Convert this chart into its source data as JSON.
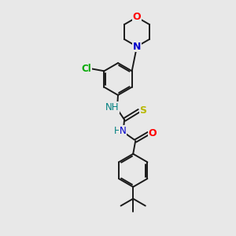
{
  "background_color": "#e8e8e8",
  "bond_color": "#1a1a1a",
  "atom_colors": {
    "O": "#ff0000",
    "N": "#0000cc",
    "S": "#b8b800",
    "Cl": "#00aa00",
    "C": "#1a1a1a",
    "NH": "#008080"
  },
  "line_width": 1.4,
  "figsize": [
    3.0,
    3.0
  ],
  "dpi": 100
}
